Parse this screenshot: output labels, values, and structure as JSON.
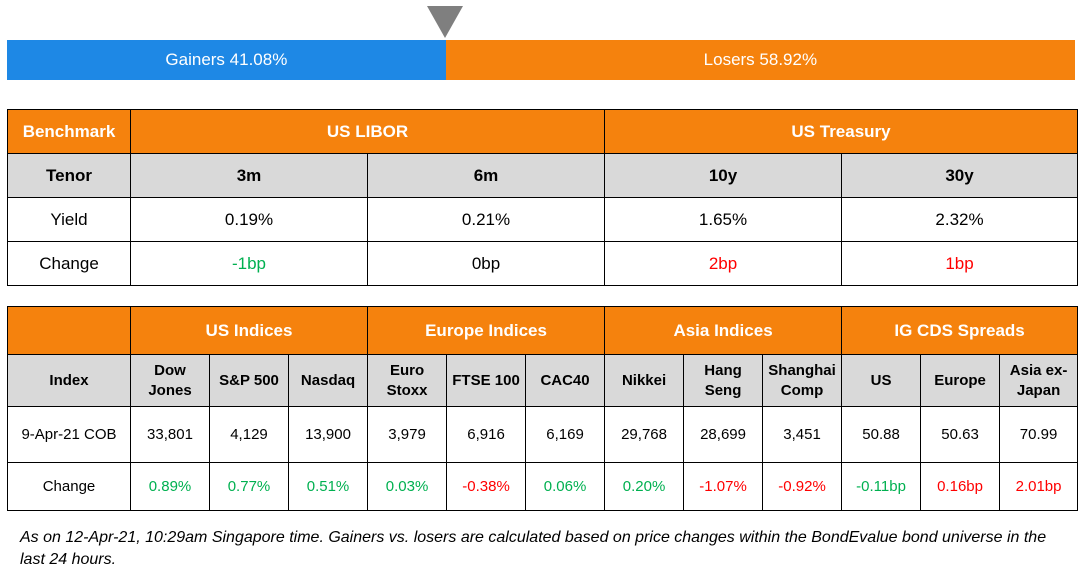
{
  "breadth": {
    "gainers_label": "Gainers 41.08%",
    "losers_label": "Losers 58.92%",
    "gainers_pct": 41.08,
    "losers_pct": 58.92,
    "colors": {
      "gainers": "#1e88e5",
      "losers": "#f5820d",
      "marker": "#7f7f7f"
    }
  },
  "rates": {
    "benchmark_label": "Benchmark",
    "groups": [
      "US LIBOR",
      "US Treasury"
    ],
    "tenor_label": "Tenor",
    "tenors": [
      "3m",
      "6m",
      "10y",
      "30y"
    ],
    "yield_label": "Yield",
    "yields": [
      "0.19%",
      "0.21%",
      "1.65%",
      "2.32%"
    ],
    "change_label": "Change",
    "changes": [
      {
        "text": "-1bp",
        "tone": "pos"
      },
      {
        "text": "0bp",
        "tone": "neu"
      },
      {
        "text": "2bp",
        "tone": "neg"
      },
      {
        "text": "1bp",
        "tone": "neg"
      }
    ]
  },
  "indices": {
    "groups": [
      "US Indices",
      "Europe Indices",
      "Asia Indices",
      "IG CDS Spreads"
    ],
    "index_label": "Index",
    "names": [
      "Dow Jones",
      "S&P 500",
      "Nasdaq",
      "Euro Stoxx",
      "FTSE 100",
      "CAC40",
      "Nikkei",
      "Hang Seng",
      "Shanghai Comp",
      "US",
      "Europe",
      "Asia ex-Japan"
    ],
    "date_label": "9-Apr-21 COB",
    "values": [
      "33,801",
      "4,129",
      "13,900",
      "3,979",
      "6,916",
      "6,169",
      "29,768",
      "28,699",
      "3,451",
      "50.88",
      "50.63",
      "70.99"
    ],
    "change_label": "Change",
    "changes": [
      {
        "text": "0.89%",
        "tone": "pos"
      },
      {
        "text": "0.77%",
        "tone": "pos"
      },
      {
        "text": "0.51%",
        "tone": "pos"
      },
      {
        "text": "0.03%",
        "tone": "pos"
      },
      {
        "text": "-0.38%",
        "tone": "neg"
      },
      {
        "text": "0.06%",
        "tone": "pos"
      },
      {
        "text": "0.20%",
        "tone": "pos"
      },
      {
        "text": "-1.07%",
        "tone": "neg"
      },
      {
        "text": "-0.92%",
        "tone": "neg"
      },
      {
        "text": "-0.11bp",
        "tone": "pos"
      },
      {
        "text": "0.16bp",
        "tone": "neg"
      },
      {
        "text": "2.01bp",
        "tone": "neg"
      }
    ]
  },
  "footnote": "As on 12-Apr-21, 10:29am Singapore time. Gainers vs. losers are calculated based on price changes within the BondEvalue bond universe in the last 24 hours."
}
